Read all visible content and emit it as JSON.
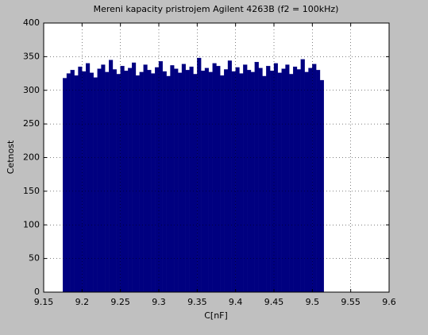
{
  "chart_data": {
    "type": "histogram",
    "title": "Mereni kapacity pristrojem Agilent 4263B (f2 = 100kHz)",
    "x_label": "C[nF]",
    "y_label": "Cetnost",
    "color": "#000080",
    "grid": true,
    "bins": [
      9.175,
      9.18,
      9.185,
      9.19,
      9.195,
      9.2,
      9.205,
      9.21,
      9.215,
      9.22,
      9.225,
      9.23,
      9.235,
      9.24,
      9.245,
      9.25,
      9.255,
      9.26,
      9.265,
      9.27,
      9.275,
      9.28,
      9.285,
      9.29,
      9.295,
      9.3,
      9.305,
      9.31,
      9.315,
      9.32,
      9.325,
      9.33,
      9.335,
      9.34,
      9.345,
      9.35,
      9.355,
      9.36,
      9.365,
      9.37,
      9.375,
      9.38,
      9.385,
      9.39,
      9.395,
      9.4,
      9.405,
      9.41,
      9.415,
      9.42,
      9.425,
      9.43,
      9.435,
      9.44,
      9.445,
      9.45,
      9.455,
      9.46,
      9.465,
      9.47,
      9.475,
      9.48,
      9.485,
      9.49,
      9.495,
      9.5,
      9.505,
      9.51,
      9.515
    ],
    "values": [
      318,
      325,
      330,
      322,
      335,
      328,
      340,
      326,
      319,
      332,
      338,
      327,
      345,
      331,
      324,
      336,
      329,
      333,
      341,
      322,
      327,
      338,
      330,
      325,
      334,
      343,
      328,
      321,
      337,
      332,
      326,
      339,
      330,
      335,
      324,
      348,
      329,
      333,
      327,
      340,
      336,
      322,
      331,
      344,
      328,
      334,
      325,
      338,
      330,
      327,
      342,
      333,
      321,
      336,
      329,
      340,
      326,
      332,
      338,
      324,
      335,
      331,
      346,
      327,
      333,
      339,
      330,
      315
    ],
    "xlim": [
      9.15,
      9.6
    ],
    "xticks": [
      9.15,
      9.2,
      9.25,
      9.3,
      9.35,
      9.4,
      9.45,
      9.5,
      9.55,
      9.6
    ],
    "ylim": [
      0,
      400
    ],
    "yticks": [
      0,
      50,
      100,
      150,
      200,
      250,
      300,
      350,
      400
    ]
  }
}
